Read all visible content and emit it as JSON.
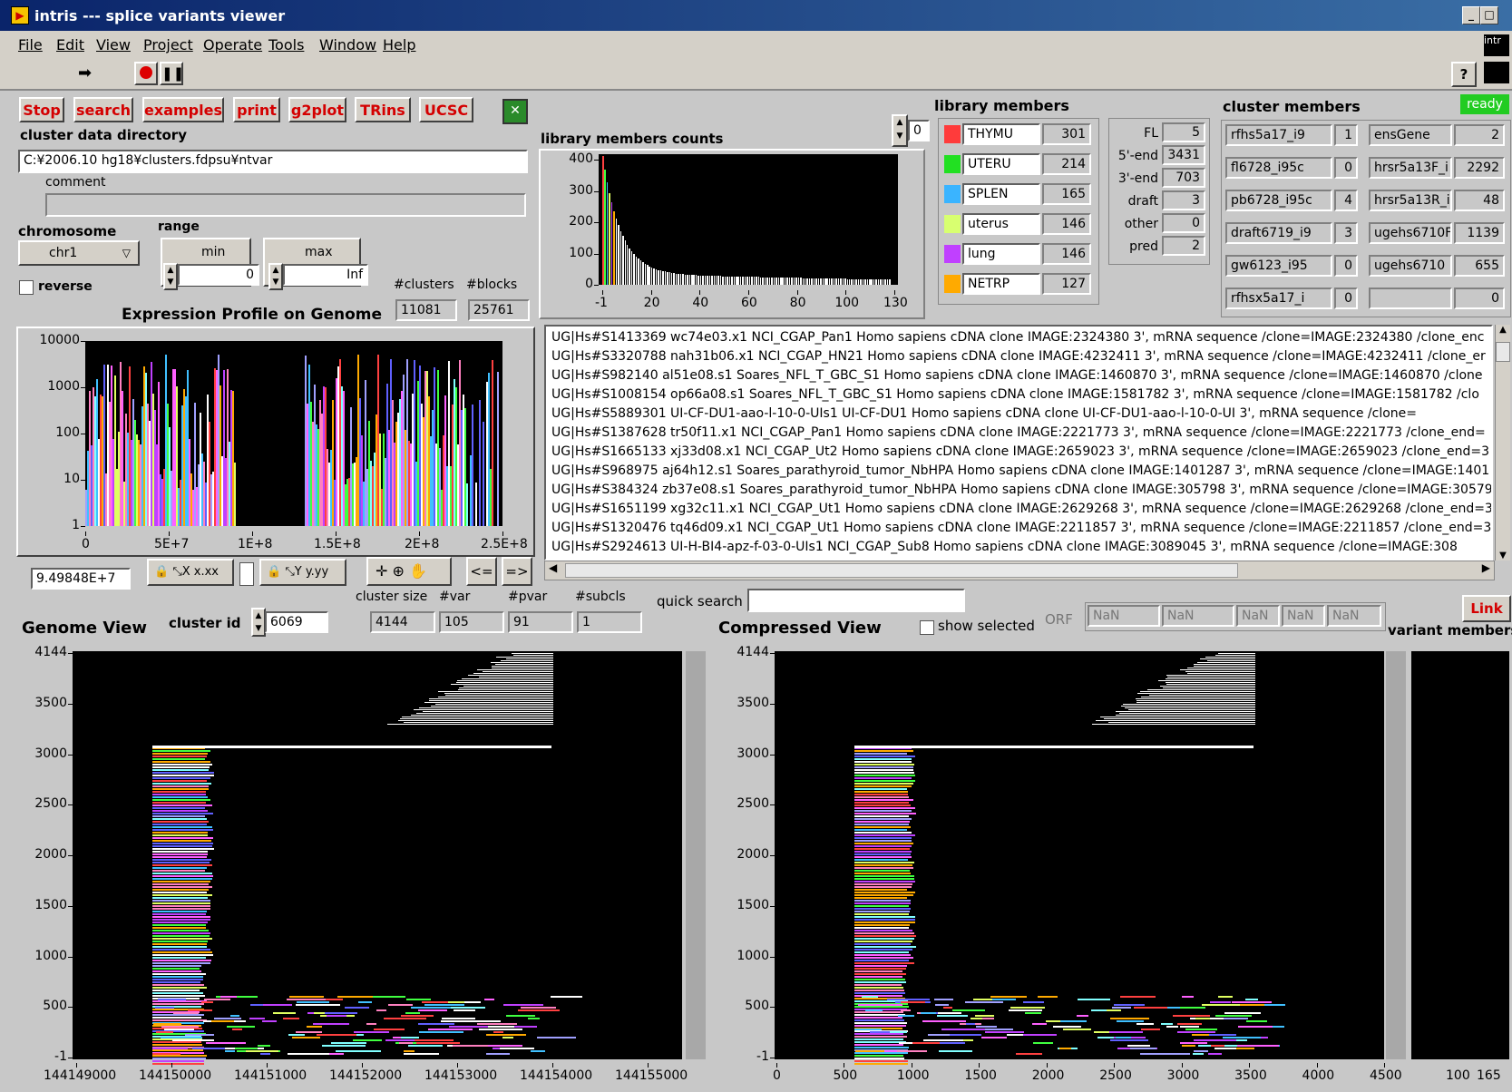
{
  "window": {
    "title": "intris --- splice variants viewer"
  },
  "menu": [
    "File",
    "Edit",
    "View",
    "Project",
    "Operate",
    "Tools",
    "Window",
    "Help"
  ],
  "buttons": {
    "stop": "Stop",
    "search": "search",
    "examples": "examples",
    "print": "print",
    "g2plot": "g2plot",
    "trins": "TRins",
    "ucsc": "UCSC",
    "link": "Link",
    "nav_left": "<=",
    "nav_right": "=>"
  },
  "status": {
    "ready": "ready"
  },
  "cluster_dir": {
    "label": "cluster data directory",
    "value": "C:¥2006.10 hg18¥clusters.fdpsu¥ntvar",
    "comment_label": "comment",
    "comment": ""
  },
  "chromosome": {
    "label": "chromosome",
    "value": "chr1",
    "reverse_label": "reverse"
  },
  "range": {
    "label": "range",
    "min_label": "min",
    "max_label": "max",
    "min": "0",
    "max": "Inf"
  },
  "counts": {
    "clusters_label": "#clusters",
    "blocks_label": "#blocks",
    "clusters": "11081",
    "blocks": "25761"
  },
  "expression": {
    "title": "Expression Profile on Genome",
    "cursor_value": "9.49848E+7"
  },
  "library_counts": {
    "title": "library members counts"
  },
  "library_index": "0",
  "library_members": {
    "title": "library members",
    "items": [
      {
        "name": "THYMU",
        "count": "301",
        "color": "#ff3b3b"
      },
      {
        "name": "UTERU",
        "count": "214",
        "color": "#22e022"
      },
      {
        "name": "SPLEN",
        "count": "165",
        "color": "#3ab4ff"
      },
      {
        "name": "uterus",
        "count": "146",
        "color": "#d8ff70"
      },
      {
        "name": "lung",
        "count": "146",
        "color": "#c040ff"
      },
      {
        "name": "NETRP",
        "count": "127",
        "color": "#ffaa00"
      }
    ]
  },
  "end_stats": [
    {
      "label": "FL",
      "value": "5"
    },
    {
      "label": "5'-end",
      "value": "3431"
    },
    {
      "label": "3'-end",
      "value": "703"
    },
    {
      "label": "draft",
      "value": "3"
    },
    {
      "label": "other",
      "value": "0"
    },
    {
      "label": "pred",
      "value": "2"
    }
  ],
  "cluster_members": {
    "title": "cluster members",
    "left": [
      {
        "name": "rfhs5a17_i9",
        "value": "1"
      },
      {
        "name": "fl6728_i95c",
        "value": "0"
      },
      {
        "name": "pb6728_i95c",
        "value": "4"
      },
      {
        "name": "draft6719_i9",
        "value": "3"
      },
      {
        "name": "gw6123_i95",
        "value": "0"
      },
      {
        "name": "rfhsx5a17_i",
        "value": "0"
      }
    ],
    "right": [
      {
        "name": "ensGene",
        "value": "2"
      },
      {
        "name": "hrsr5a13F_i",
        "value": "2292"
      },
      {
        "name": "hrsr5a13R_i",
        "value": "48"
      },
      {
        "name": "ugehs6710F",
        "value": "1139"
      },
      {
        "name": "ugehs6710",
        "value": "655"
      },
      {
        "name": "",
        "value": "0"
      }
    ]
  },
  "sequence_list": [
    "UG|Hs#S1413369 wc74e03.x1 NCI_CGAP_Pan1 Homo sapiens cDNA clone IMAGE:2324380 3', mRNA sequence /clone=IMAGE:2324380 /clone_enc",
    "UG|Hs#S3320788 nah31b06.x1 NCI_CGAP_HN21 Homo sapiens cDNA clone IMAGE:4232411 3', mRNA sequence /clone=IMAGE:4232411 /clone_er",
    "UG|Hs#S982140 al51e08.s1 Soares_NFL_T_GBC_S1 Homo sapiens cDNA clone IMAGE:1460870 3', mRNA sequence /clone=IMAGE:1460870 /clone",
    "UG|Hs#S1008154 op66a08.s1 Soares_NFL_T_GBC_S1 Homo sapiens cDNA clone IMAGE:1581782 3', mRNA sequence /clone=IMAGE:1581782 /clo",
    "UG|Hs#S5889301 UI-CF-DU1-aao-l-10-0-UIs1 UI-CF-DU1 Homo sapiens cDNA clone UI-CF-DU1-aao-l-10-0-UI 3', mRNA sequence /clone=",
    "UG|Hs#S1387628 tr50f11.x1 NCI_CGAP_Pan1 Homo sapiens cDNA clone IMAGE:2221773 3', mRNA sequence /clone=IMAGE:2221773 /clone_end=",
    "UG|Hs#S1665133 xj33d08.x1 NCI_CGAP_Ut2 Homo sapiens cDNA clone IMAGE:2659023 3', mRNA sequence /clone=IMAGE:2659023 /clone_end=3",
    "UG|Hs#S968975 aj64h12.s1 Soares_parathyroid_tumor_NbHPA Homo sapiens cDNA clone IMAGE:1401287 3', mRNA sequence /clone=IMAGE:1401",
    "UG|Hs#S384324 zb37e08.s1 Soares_parathyroid_tumor_NbHPA Homo sapiens cDNA clone IMAGE:305798 3', mRNA sequence /clone=IMAGE:30579",
    "UG|Hs#S1651199 xg32c11.x1 NCI_CGAP_Ut1 Homo sapiens cDNA clone IMAGE:2629268 3', mRNA sequence /clone=IMAGE:2629268 /clone_end=3",
    "UG|Hs#S1320476 tq46d09.x1 NCI_CGAP_Ut1 Homo sapiens cDNA clone IMAGE:2211857 3', mRNA sequence /clone=IMAGE:2211857 /clone_end=3",
    "UG|Hs#S2924613 UI-H-BI4-apz-f-03-0-UIs1 NCI_CGAP_Sub8 Homo sapiens cDNA clone IMAGE:3089045 3', mRNA sequence /clone=IMAGE:308"
  ],
  "cluster_info": {
    "cluster_id_label": "cluster id",
    "cluster_id": "6069",
    "size_label": "cluster size",
    "size": "4144",
    "var_label": "#var",
    "var": "105",
    "pvar_label": "#pvar",
    "pvar": "91",
    "subcls_label": "#subcls",
    "subcls": "1"
  },
  "quick_search": {
    "label": "quick search",
    "value": ""
  },
  "show_selected_label": "show selected",
  "orf": {
    "label": "ORF",
    "values": [
      "NaN",
      "NaN",
      "NaN",
      "NaN",
      "NaN"
    ]
  },
  "views": {
    "genome": "Genome View",
    "compressed": "Compressed View",
    "variant": "variant members"
  },
  "axes": {
    "expr_y": [
      "10000",
      "1000",
      "100",
      "10",
      "1"
    ],
    "expr_x": [
      "0",
      "5E+7",
      "1E+8",
      "1.5E+8",
      "2E+8",
      "2.5E+8"
    ],
    "lib_y": [
      "400",
      "300",
      "200",
      "100",
      "0"
    ],
    "lib_x": [
      "-1",
      "20",
      "40",
      "60",
      "80",
      "100",
      "130"
    ],
    "gv_y": [
      "4144",
      "3500",
      "3000",
      "2500",
      "2000",
      "1500",
      "1000",
      "500",
      "-1"
    ],
    "gv_x": [
      "144149000",
      "144150000",
      "144151000",
      "144152000",
      "144153000",
      "144154000",
      "144155000"
    ],
    "cv_x": [
      "0",
      "500",
      "1000",
      "1500",
      "2000",
      "2500",
      "3000",
      "3500",
      "4000",
      "4500"
    ],
    "vm_x": [
      "100",
      "165"
    ]
  },
  "colors": {
    "accent_red": "#d40000",
    "ready_green": "#22cc22",
    "plot_bg": "#000000",
    "panel_gray": "#c8c8c8"
  }
}
